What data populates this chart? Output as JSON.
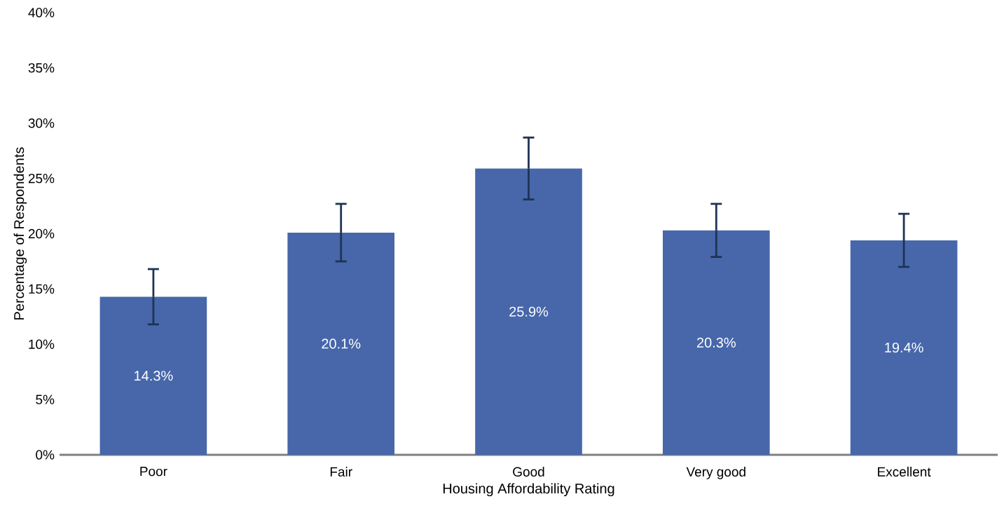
{
  "chart_data": {
    "type": "bar",
    "xlabel": "Housing Affordability Rating",
    "ylabel": "Percentage of Respondents",
    "categories": [
      "Poor",
      "Fair",
      "Good",
      "Very good",
      "Excellent"
    ],
    "values": [
      14.3,
      20.1,
      25.9,
      20.3,
      19.4
    ],
    "errors": [
      2.5,
      2.6,
      2.8,
      2.4,
      2.4
    ],
    "value_labels": [
      "14.3%",
      "20.1%",
      "25.9%",
      "20.3%",
      "19.4%"
    ],
    "color": "#4767aa",
    "ylim": [
      0,
      40
    ],
    "yticks": [
      {
        "value": 0,
        "label": "0%"
      },
      {
        "value": 5,
        "label": "5%"
      },
      {
        "value": 10,
        "label": "10%"
      },
      {
        "value": 15,
        "label": "15%"
      },
      {
        "value": 20,
        "label": "20%"
      },
      {
        "value": 25,
        "label": "25%"
      },
      {
        "value": 30,
        "label": "30%"
      },
      {
        "value": 35,
        "label": "35%"
      },
      {
        "value": 40,
        "label": "40%"
      }
    ],
    "grid": false
  }
}
